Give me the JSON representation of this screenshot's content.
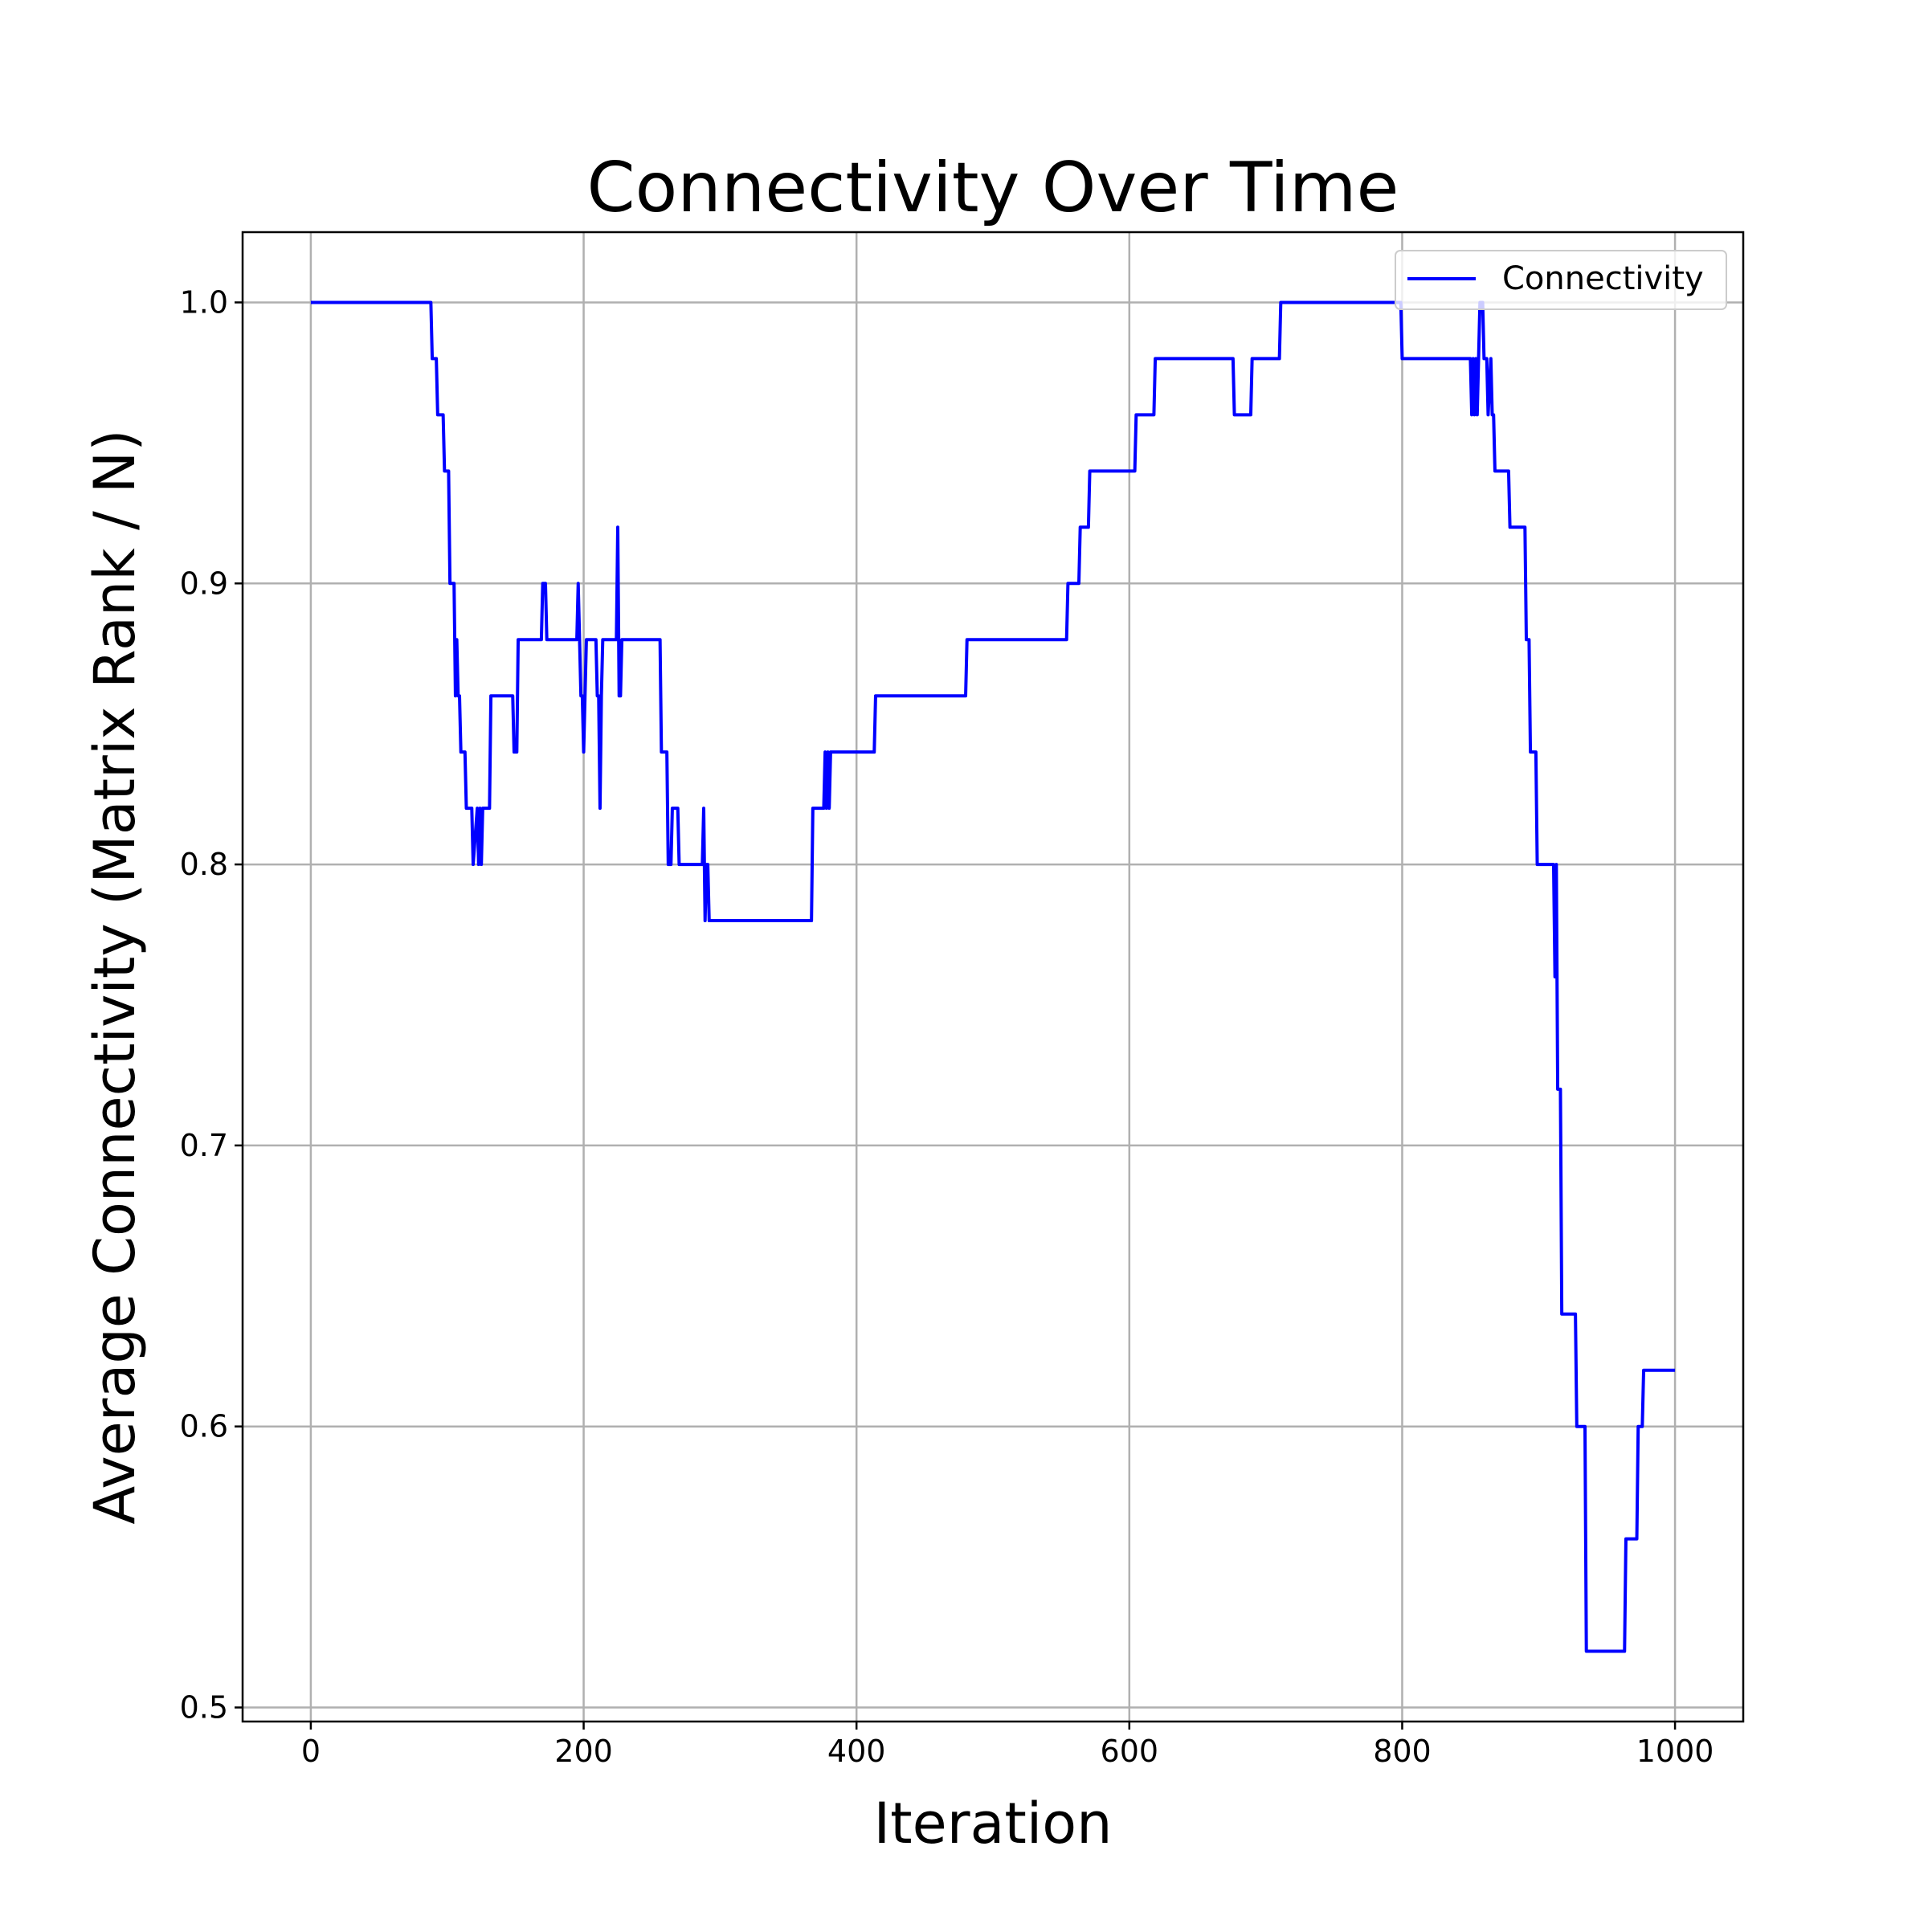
{
  "chart_data": {
    "type": "line",
    "title": "Connectivity Over Time",
    "xlabel": "Iteration",
    "ylabel": "Average Connectivity (Matrix Rank / N)",
    "xlim": [
      -50,
      1050
    ],
    "ylim": [
      0.495,
      1.025
    ],
    "xticks": [
      0,
      200,
      400,
      600,
      800,
      1000
    ],
    "xtick_labels": [
      "0",
      "200",
      "400",
      "600",
      "800",
      "1000"
    ],
    "yticks": [
      0.5,
      0.6,
      0.7,
      0.8,
      0.9,
      1.0
    ],
    "ytick_labels": [
      "0.5",
      "0.6",
      "0.7",
      "0.8",
      "0.9",
      "1.0"
    ],
    "grid": true,
    "legend": {
      "position": "top-right",
      "entries": [
        "Connectivity"
      ]
    },
    "series": [
      {
        "name": "Connectivity",
        "color": "#0000ff",
        "x": [
          0,
          88,
          89,
          92,
          93,
          97,
          98,
          101,
          102,
          105,
          106,
          107,
          108,
          109,
          110,
          113,
          114,
          118,
          119,
          122,
          123,
          124,
          125,
          126,
          127,
          128,
          129,
          131,
          132,
          136,
          137,
          148,
          149,
          151,
          152,
          169,
          170,
          172,
          173,
          195,
          196,
          197,
          198,
          199,
          200,
          201,
          202,
          203,
          204,
          209,
          210,
          211,
          212,
          213,
          214,
          215,
          216,
          218,
          219,
          224,
          225,
          226,
          227,
          228,
          229,
          230,
          231,
          256,
          257,
          261,
          262,
          264,
          265,
          269,
          270,
          272,
          273,
          287,
          288,
          289,
          290,
          291,
          292,
          298,
          299,
          367,
          368,
          376,
          377,
          378,
          379,
          380,
          381,
          382,
          383,
          413,
          414,
          480,
          481,
          554,
          555,
          563,
          564,
          570,
          571,
          604,
          605,
          618,
          619,
          676,
          677,
          689,
          690,
          710,
          711,
          799,
          800,
          850,
          851,
          852,
          853,
          854,
          855,
          856,
          857,
          859,
          860,
          862,
          863,
          865,
          866,
          867,
          868,
          869,
          870,
          878,
          879,
          890,
          891,
          893,
          894,
          898,
          899,
          905,
          906,
          911,
          912,
          913,
          914,
          916,
          917,
          918,
          919,
          927,
          928,
          934,
          935,
          963,
          964,
          972,
          973,
          976,
          977,
          1000
        ],
        "y": [
          1.0,
          1.0,
          0.98,
          0.98,
          0.96,
          0.96,
          0.94,
          0.94,
          0.9,
          0.9,
          0.86,
          0.88,
          0.86,
          0.86,
          0.84,
          0.84,
          0.82,
          0.82,
          0.8,
          0.82,
          0.8,
          0.82,
          0.8,
          0.82,
          0.82,
          0.82,
          0.82,
          0.82,
          0.86,
          0.86,
          0.86,
          0.86,
          0.84,
          0.84,
          0.88,
          0.88,
          0.9,
          0.9,
          0.88,
          0.88,
          0.9,
          0.88,
          0.86,
          0.86,
          0.84,
          0.86,
          0.88,
          0.88,
          0.88,
          0.88,
          0.86,
          0.86,
          0.82,
          0.86,
          0.88,
          0.88,
          0.88,
          0.88,
          0.88,
          0.88,
          0.92,
          0.86,
          0.86,
          0.88,
          0.88,
          0.88,
          0.88,
          0.88,
          0.84,
          0.84,
          0.8,
          0.8,
          0.82,
          0.82,
          0.8,
          0.8,
          0.8,
          0.8,
          0.82,
          0.78,
          0.8,
          0.8,
          0.78,
          0.78,
          0.78,
          0.78,
          0.82,
          0.82,
          0.84,
          0.82,
          0.84,
          0.82,
          0.84,
          0.84,
          0.84,
          0.84,
          0.86,
          0.86,
          0.88,
          0.88,
          0.9,
          0.9,
          0.92,
          0.92,
          0.94,
          0.94,
          0.96,
          0.96,
          0.98,
          0.98,
          0.96,
          0.96,
          0.98,
          0.98,
          1.0,
          1.0,
          0.98,
          0.98,
          0.96,
          0.98,
          0.96,
          0.98,
          0.96,
          0.98,
          1.0,
          1.0,
          0.98,
          0.98,
          0.96,
          0.98,
          0.96,
          0.96,
          0.94,
          0.94,
          0.94,
          0.94,
          0.92,
          0.92,
          0.88,
          0.88,
          0.84,
          0.84,
          0.8,
          0.8,
          0.8,
          0.8,
          0.76,
          0.8,
          0.72,
          0.72,
          0.64,
          0.64,
          0.64,
          0.64,
          0.6,
          0.6,
          0.52,
          0.52,
          0.56,
          0.56,
          0.6,
          0.6,
          0.62,
          0.62
        ]
      }
    ]
  }
}
